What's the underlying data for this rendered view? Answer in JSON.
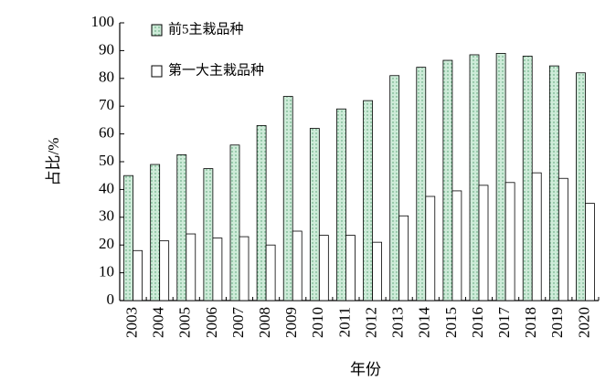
{
  "chart_data": {
    "type": "bar",
    "x_label": "年份",
    "y_label": "占比/%",
    "categories": [
      "2003",
      "2004",
      "2005",
      "2006",
      "2007",
      "2008",
      "2009",
      "2010",
      "2011",
      "2012",
      "2013",
      "2014",
      "2015",
      "2016",
      "2017",
      "2018",
      "2019",
      "2020"
    ],
    "series": [
      {
        "name": "前5主栽品种",
        "color": "#cdebd8",
        "values": [
          45,
          49,
          52.5,
          47.5,
          56,
          63,
          73.5,
          62,
          69,
          72,
          81,
          84,
          86.5,
          88.5,
          89,
          88,
          84.5,
          82
        ]
      },
      {
        "name": "第一大主栽品种",
        "color": "#ffffff",
        "values": [
          18,
          21.5,
          24,
          22.5,
          23,
          20,
          25,
          23.5,
          23.5,
          21,
          30.5,
          37.5,
          39.5,
          41.5,
          42.5,
          46,
          44,
          35
        ]
      }
    ],
    "ylim": [
      0,
      100
    ],
    "yticks": [
      0,
      10,
      20,
      30,
      40,
      50,
      60,
      70,
      80,
      90,
      100
    ]
  }
}
